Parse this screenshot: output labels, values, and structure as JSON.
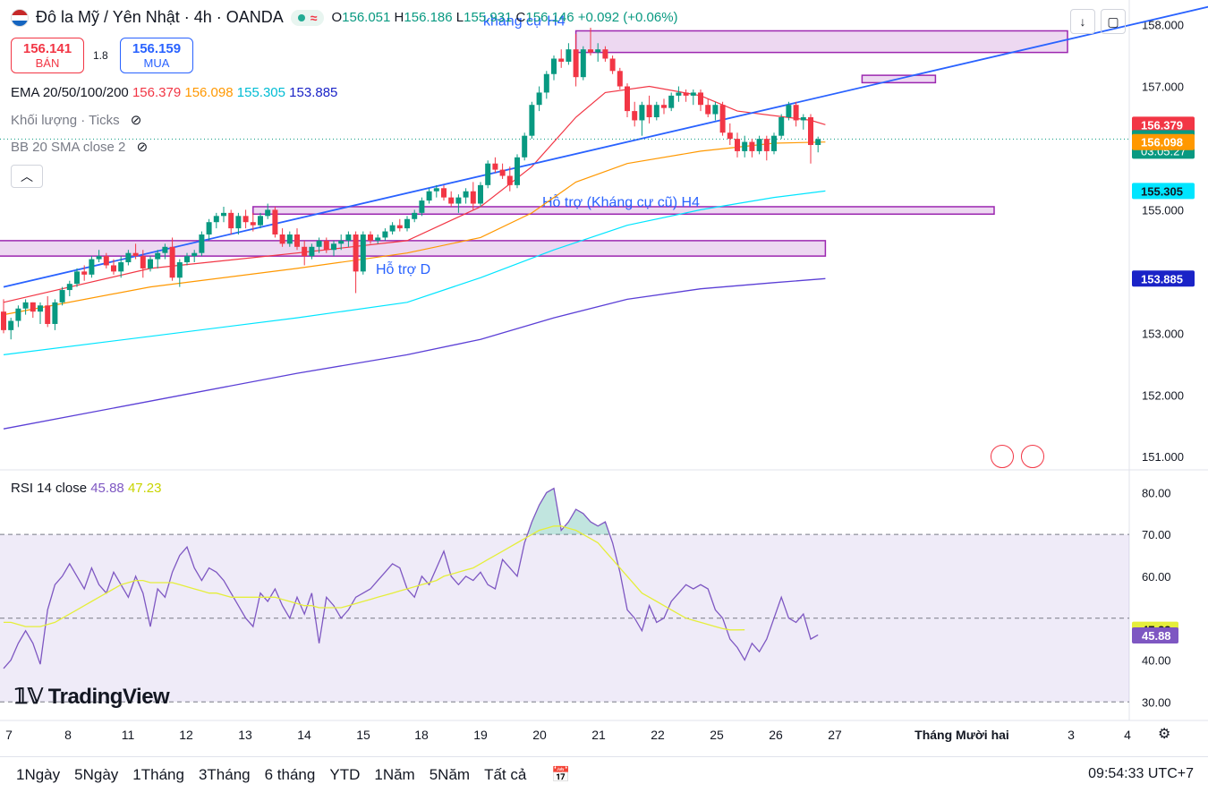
{
  "header": {
    "title": "Đô la Mỹ / Yên Nhật · 4h · OANDA",
    "ohlc": {
      "o_label": "O",
      "o": "156.051",
      "h_label": "H",
      "h": "156.186",
      "l_label": "L",
      "l": "155.931",
      "c_label": "C",
      "c": "156.146",
      "change": "+0.092 (+0.06%)"
    }
  },
  "trade": {
    "sell_price": "156.141",
    "sell_label": "BÁN",
    "spread": "1.8",
    "buy_price": "156.159",
    "buy_label": "MUA"
  },
  "indicators": {
    "ema_label": "EMA 20/50/100/200",
    "ema_values": [
      "156.379",
      "156.098",
      "155.305",
      "153.885"
    ],
    "volume_label": "Khối lượng · Ticks",
    "bb_label": "BB 20 SMA close 2"
  },
  "rsi": {
    "label": "RSI 14 close",
    "value": "45.88",
    "ma_value": "47.23"
  },
  "logo": "TradingView",
  "colors": {
    "up": "#089981",
    "down": "#f23645",
    "ema20": "#f23645",
    "ema50": "#ff9800",
    "ema100": "#00e5ff",
    "ema200": "#5b3fd6",
    "trend": "#2962ff",
    "zone": "#9c27b0",
    "rsi": "#7e57c2",
    "rsi_ma": "#e5ee3b"
  },
  "bottom": {
    "timeframes": [
      "1Ngày",
      "5Ngày",
      "1Tháng",
      "3Tháng",
      "6 tháng",
      "YTD",
      "1Năm",
      "5Năm",
      "Tất cả"
    ],
    "clock": "09:54:33 UTC+7"
  },
  "icons": [
    "us-flag-icon",
    "market-open-icon",
    "download-icon",
    "fullscreen-icon",
    "eye-off-icon",
    "chevron-up-icon",
    "compare-icon",
    "settings-icon",
    "replay-icon"
  ],
  "chart_data": {
    "type": "candlestick",
    "price_axis": {
      "min": 150.8,
      "max": 158.4,
      "ticks": [
        158.0,
        157.0,
        155.0,
        153.0,
        152.0,
        151.0
      ]
    },
    "price_ticks_labels": [
      "158.000",
      "157.000",
      "155.000",
      "153.000",
      "152.000",
      "151.000"
    ],
    "time_labels": [
      "7",
      "8",
      "11",
      "12",
      "13",
      "14",
      "15",
      "18",
      "19",
      "20",
      "21",
      "22",
      "25",
      "26",
      "27",
      "Tháng Mười hai",
      "3",
      "4"
    ],
    "price_labels": [
      {
        "text": "156.379",
        "value": 156.379,
        "color": "#f23645"
      },
      {
        "text": "156.146",
        "value": 156.146,
        "color": "#089981",
        "sub": "03:05:27"
      },
      {
        "text": "156.098",
        "value": 156.098,
        "color": "#ff9800"
      },
      {
        "text": "155.305",
        "value": 155.305,
        "color": "#00e5ff"
      },
      {
        "text": "153.885",
        "value": 153.885,
        "color": "#1a23c7"
      }
    ],
    "last_price": 156.146,
    "candles": [
      [
        153.35,
        153.55,
        153.0,
        153.05
      ],
      [
        153.05,
        153.25,
        152.9,
        153.2
      ],
      [
        153.2,
        153.45,
        153.1,
        153.4
      ],
      [
        153.4,
        153.55,
        153.3,
        153.5
      ],
      [
        153.5,
        153.5,
        153.25,
        153.35
      ],
      [
        153.35,
        153.5,
        153.15,
        153.45
      ],
      [
        153.45,
        153.6,
        153.1,
        153.15
      ],
      [
        153.15,
        153.55,
        153.05,
        153.5
      ],
      [
        153.5,
        153.75,
        153.45,
        153.7
      ],
      [
        153.7,
        153.85,
        153.6,
        153.8
      ],
      [
        153.8,
        154.05,
        153.75,
        154.0
      ],
      [
        154.0,
        154.1,
        153.85,
        153.95
      ],
      [
        153.95,
        154.25,
        153.9,
        154.2
      ],
      [
        154.2,
        154.35,
        154.15,
        154.25
      ],
      [
        154.25,
        154.3,
        154.05,
        154.1
      ],
      [
        154.1,
        154.2,
        153.95,
        154.0
      ],
      [
        154.0,
        154.25,
        153.9,
        154.15
      ],
      [
        154.15,
        154.35,
        154.1,
        154.3
      ],
      [
        154.3,
        154.45,
        154.2,
        154.25
      ],
      [
        154.25,
        154.35,
        153.9,
        154.05
      ],
      [
        154.05,
        154.25,
        154.0,
        154.2
      ],
      [
        154.2,
        154.35,
        154.05,
        154.3
      ],
      [
        154.3,
        154.45,
        154.2,
        154.4
      ],
      [
        154.4,
        154.55,
        153.85,
        153.9
      ],
      [
        153.9,
        154.2,
        153.75,
        154.15
      ],
      [
        154.15,
        154.3,
        154.1,
        154.25
      ],
      [
        154.25,
        154.35,
        154.15,
        154.3
      ],
      [
        154.3,
        154.65,
        154.25,
        154.6
      ],
      [
        154.6,
        154.85,
        154.5,
        154.8
      ],
      [
        154.8,
        154.95,
        154.7,
        154.9
      ],
      [
        154.9,
        155.05,
        154.8,
        154.95
      ],
      [
        154.95,
        155.0,
        154.6,
        154.7
      ],
      [
        154.7,
        154.95,
        154.6,
        154.9
      ],
      [
        154.9,
        155.0,
        154.7,
        154.8
      ],
      [
        154.8,
        154.95,
        154.65,
        154.75
      ],
      [
        154.75,
        154.95,
        154.7,
        154.9
      ],
      [
        154.9,
        155.1,
        154.85,
        155.0
      ],
      [
        155.0,
        155.05,
        154.55,
        154.6
      ],
      [
        154.6,
        154.7,
        154.4,
        154.45
      ],
      [
        154.45,
        154.65,
        154.4,
        154.6
      ],
      [
        154.6,
        154.7,
        154.35,
        154.4
      ],
      [
        154.4,
        154.5,
        154.1,
        154.25
      ],
      [
        154.25,
        154.45,
        154.2,
        154.4
      ],
      [
        154.4,
        154.55,
        154.3,
        154.5
      ],
      [
        154.5,
        154.55,
        154.3,
        154.35
      ],
      [
        154.35,
        154.5,
        154.25,
        154.45
      ],
      [
        154.45,
        154.6,
        154.35,
        154.5
      ],
      [
        154.5,
        154.65,
        154.4,
        154.6
      ],
      [
        154.6,
        154.65,
        153.65,
        154.0
      ],
      [
        154.0,
        154.65,
        153.95,
        154.6
      ],
      [
        154.6,
        154.65,
        154.45,
        154.5
      ],
      [
        154.5,
        154.6,
        154.45,
        154.55
      ],
      [
        154.55,
        154.7,
        154.5,
        154.65
      ],
      [
        154.65,
        154.8,
        154.6,
        154.75
      ],
      [
        154.75,
        154.85,
        154.65,
        154.7
      ],
      [
        154.7,
        154.9,
        154.65,
        154.85
      ],
      [
        154.85,
        155.0,
        154.8,
        154.95
      ],
      [
        154.95,
        155.2,
        154.9,
        155.15
      ],
      [
        155.15,
        155.35,
        155.1,
        155.3
      ],
      [
        155.3,
        155.4,
        155.2,
        155.35
      ],
      [
        155.35,
        155.4,
        155.15,
        155.2
      ],
      [
        155.2,
        155.3,
        155.05,
        155.1
      ],
      [
        155.1,
        155.25,
        154.95,
        155.2
      ],
      [
        155.2,
        155.35,
        155.1,
        155.3
      ],
      [
        155.3,
        155.45,
        155.0,
        155.1
      ],
      [
        155.1,
        155.45,
        155.05,
        155.4
      ],
      [
        155.4,
        155.8,
        155.35,
        155.75
      ],
      [
        155.75,
        155.85,
        155.6,
        155.65
      ],
      [
        155.65,
        155.75,
        155.5,
        155.55
      ],
      [
        155.55,
        155.7,
        155.3,
        155.4
      ],
      [
        155.4,
        155.9,
        155.35,
        155.85
      ],
      [
        155.85,
        156.25,
        155.8,
        156.2
      ],
      [
        156.2,
        156.75,
        156.15,
        156.7
      ],
      [
        156.7,
        157.0,
        156.6,
        156.9
      ],
      [
        156.9,
        157.25,
        156.8,
        157.2
      ],
      [
        157.2,
        157.5,
        157.1,
        157.45
      ],
      [
        157.45,
        157.6,
        157.3,
        157.4
      ],
      [
        157.4,
        157.7,
        157.35,
        157.6
      ],
      [
        157.6,
        157.85,
        157.0,
        157.15
      ],
      [
        157.15,
        157.65,
        157.1,
        157.6
      ],
      [
        157.6,
        157.95,
        157.5,
        157.55
      ],
      [
        157.55,
        157.7,
        157.4,
        157.6
      ],
      [
        157.6,
        157.65,
        157.4,
        157.45
      ],
      [
        157.45,
        157.5,
        157.2,
        157.25
      ],
      [
        157.25,
        157.3,
        156.95,
        157.0
      ],
      [
        157.0,
        157.05,
        156.5,
        156.6
      ],
      [
        156.6,
        156.75,
        156.35,
        156.45
      ],
      [
        156.45,
        156.75,
        156.2,
        156.7
      ],
      [
        156.7,
        156.85,
        156.4,
        156.5
      ],
      [
        156.5,
        156.75,
        156.45,
        156.7
      ],
      [
        156.7,
        156.8,
        156.55,
        156.65
      ],
      [
        156.65,
        156.9,
        156.6,
        156.85
      ],
      [
        156.85,
        157.0,
        156.75,
        156.9
      ],
      [
        156.9,
        156.95,
        156.75,
        156.85
      ],
      [
        156.85,
        156.95,
        156.7,
        156.9
      ],
      [
        156.9,
        156.95,
        156.6,
        156.7
      ],
      [
        156.7,
        156.8,
        156.5,
        156.55
      ],
      [
        156.55,
        156.75,
        156.45,
        156.7
      ],
      [
        156.7,
        156.75,
        156.2,
        156.25
      ],
      [
        156.25,
        156.4,
        156.05,
        156.15
      ],
      [
        156.15,
        156.25,
        155.85,
        155.95
      ],
      [
        155.95,
        156.2,
        155.85,
        156.1
      ],
      [
        156.1,
        156.15,
        155.85,
        155.95
      ],
      [
        155.95,
        156.2,
        155.9,
        156.15
      ],
      [
        156.15,
        156.2,
        155.8,
        155.95
      ],
      [
        155.95,
        156.25,
        155.9,
        156.2
      ],
      [
        156.2,
        156.55,
        156.15,
        156.5
      ],
      [
        156.5,
        156.75,
        156.45,
        156.7
      ],
      [
        156.7,
        156.75,
        156.35,
        156.45
      ],
      [
        156.45,
        156.55,
        156.3,
        156.5
      ],
      [
        156.5,
        156.55,
        155.75,
        156.05
      ],
      [
        156.05,
        156.186,
        155.931,
        156.146
      ]
    ],
    "ema20": [
      [
        0,
        153.5
      ],
      [
        20,
        154.05
      ],
      [
        40,
        154.3
      ],
      [
        55,
        154.5
      ],
      [
        65,
        155.05
      ],
      [
        72,
        155.7
      ],
      [
        78,
        156.5
      ],
      [
        82,
        156.9
      ],
      [
        88,
        157.0
      ],
      [
        95,
        156.85
      ],
      [
        100,
        156.6
      ],
      [
        110,
        156.45
      ],
      [
        112,
        156.379
      ]
    ],
    "ema50": [
      [
        0,
        153.3
      ],
      [
        20,
        153.75
      ],
      [
        40,
        154.05
      ],
      [
        55,
        154.3
      ],
      [
        65,
        154.55
      ],
      [
        72,
        154.95
      ],
      [
        78,
        155.45
      ],
      [
        85,
        155.75
      ],
      [
        95,
        155.95
      ],
      [
        105,
        156.08
      ],
      [
        112,
        156.098
      ]
    ],
    "ema100": [
      [
        0,
        152.65
      ],
      [
        20,
        152.95
      ],
      [
        40,
        153.25
      ],
      [
        55,
        153.5
      ],
      [
        65,
        153.9
      ],
      [
        75,
        154.35
      ],
      [
        85,
        154.75
      ],
      [
        95,
        155.0
      ],
      [
        105,
        155.2
      ],
      [
        112,
        155.305
      ]
    ],
    "ema200": [
      [
        0,
        151.45
      ],
      [
        20,
        151.9
      ],
      [
        40,
        152.35
      ],
      [
        55,
        152.65
      ],
      [
        65,
        152.9
      ],
      [
        75,
        153.25
      ],
      [
        85,
        153.55
      ],
      [
        95,
        153.72
      ],
      [
        105,
        153.82
      ],
      [
        112,
        153.885
      ]
    ],
    "trendline": [
      [
        0,
        153.75
      ],
      [
        170,
        158.45
      ]
    ],
    "zones": [
      {
        "label": "kháng cự H4",
        "x0": 78,
        "x1": 145,
        "top": 157.9,
        "bottom": 157.55
      },
      {
        "label": "",
        "x0": 117,
        "x1": 127,
        "top": 157.18,
        "bottom": 157.06
      },
      {
        "label": "Hỗ trợ (Kháng cự cũ) H4",
        "x0": 34,
        "x1": 135,
        "top": 155.05,
        "bottom": 154.93
      },
      {
        "label": "Hỗ trợ D",
        "x0": -1,
        "x1": 112,
        "top": 154.5,
        "bottom": 154.25
      }
    ],
    "rsi_axis": {
      "min": 26,
      "max": 85,
      "ticks": [
        80,
        70,
        60,
        40,
        30
      ],
      "bands": [
        30,
        50,
        70
      ]
    },
    "rsi_tick_labels": [
      "80.00",
      "70.00",
      "60.00",
      "40.00",
      "30.00"
    ],
    "rsi_labels": [
      {
        "text": "47.23",
        "value": 47.23,
        "color": "#e5ee3b"
      },
      {
        "text": "45.88",
        "value": 45.88,
        "color": "#7e57c2"
      }
    ],
    "rsi": [
      38,
      40,
      44,
      47,
      44,
      39,
      52,
      58,
      60,
      63,
      60,
      57,
      62,
      58,
      56,
      61,
      58,
      55,
      60,
      56,
      48,
      57,
      55,
      61,
      65,
      67,
      62,
      59,
      62,
      61,
      59,
      56,
      53,
      50,
      48,
      56,
      54,
      57,
      53,
      50,
      55,
      51,
      56,
      44,
      55,
      53,
      50,
      52,
      55,
      56,
      57,
      59,
      61,
      63,
      62,
      57,
      55,
      60,
      58,
      62,
      66,
      60,
      58,
      60,
      59,
      61,
      58,
      57,
      64,
      62,
      60,
      68,
      73,
      77,
      80,
      81,
      71,
      73,
      76,
      75,
      73,
      72,
      73,
      68,
      61,
      52,
      50,
      47,
      53,
      49,
      50,
      54,
      56,
      58,
      57,
      58,
      57,
      52,
      50,
      45,
      43,
      40,
      44,
      42,
      45,
      50,
      55,
      50,
      49,
      51,
      45,
      46
    ],
    "rsi_ma": [
      49,
      49,
      48.5,
      48,
      48,
      48,
      48.5,
      49,
      50,
      51,
      52,
      53,
      54,
      55,
      56,
      57,
      58,
      58.5,
      59,
      59,
      58.5,
      58.5,
      58.5,
      58.5,
      58,
      57.5,
      57,
      56.5,
      56,
      56,
      55.5,
      55,
      55,
      55,
      55,
      55,
      55,
      55,
      54.5,
      54,
      53.5,
      53,
      53,
      52.5,
      52.5,
      52.5,
      52.5,
      53,
      53.5,
      54,
      54.5,
      55,
      55.5,
      56,
      56.5,
      57,
      57.5,
      58,
      58.5,
      59,
      60,
      60.5,
      61,
      61.5,
      62,
      63,
      64,
      65,
      66,
      67,
      68,
      69,
      70,
      71,
      71.5,
      72,
      72,
      71.5,
      71,
      70,
      69,
      68,
      66,
      64,
      62,
      60,
      58,
      56,
      55,
      54,
      53,
      52,
      51,
      50,
      49.5,
      49,
      48.5,
      48,
      47.5,
      47.2,
      47.2,
      47.23
    ],
    "x_scale": {
      "start_x": 4,
      "step": 8.2
    }
  }
}
